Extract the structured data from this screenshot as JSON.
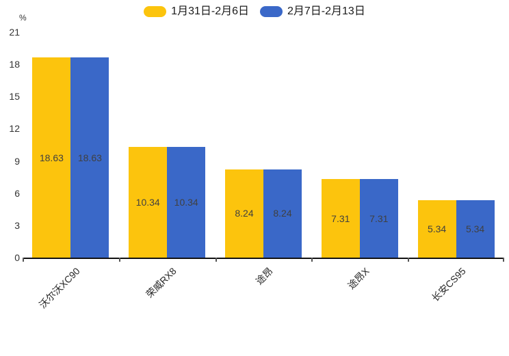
{
  "chart_data": {
    "type": "bar",
    "title": "",
    "unit_label": "%",
    "categories": [
      "沃尔沃XC90",
      "荣威RX8",
      "途昂",
      "途昂X",
      "长安CS95"
    ],
    "series": [
      {
        "name": "1月31日-2月6日",
        "color": "#FCC40D",
        "values": [
          18.63,
          10.34,
          8.24,
          7.31,
          5.34
        ]
      },
      {
        "name": "2月7日-2月13日",
        "color": "#3A68C8",
        "values": [
          18.63,
          10.34,
          8.24,
          7.31,
          5.34
        ]
      }
    ],
    "ylim": [
      0,
      21
    ],
    "yticks": [
      0,
      3,
      6,
      9,
      12,
      15,
      18,
      21
    ],
    "grid": false,
    "legend_position": "top",
    "value_labels": "inside-center",
    "xlabel": "",
    "ylabel": ""
  },
  "colors": {
    "background": "#ffffff",
    "axis_line": "#111111",
    "tick": "#555555",
    "axis_text": "#333333",
    "value_label_text": "#404040",
    "legend_text": "#1a1a1a"
  }
}
